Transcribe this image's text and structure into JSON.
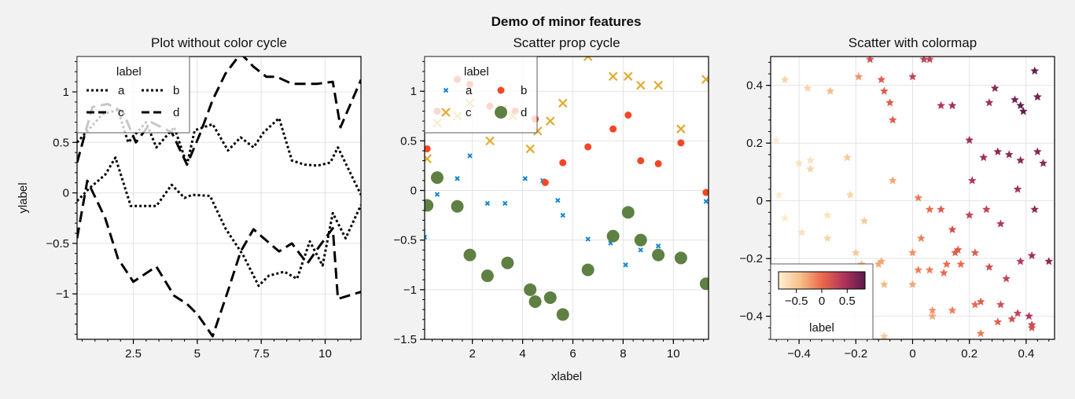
{
  "figure": {
    "suptitle": "Demo of minor features",
    "background": "#f2f2f2",
    "grid_color": "#e3e3e3"
  },
  "chart_data": [
    {
      "type": "line",
      "title": "Plot without color cycle",
      "xlabel": "",
      "ylabel": "ylabel",
      "xlim": [
        0.3,
        11.4
      ],
      "ylim": [
        -1.45,
        1.35
      ],
      "xticks": [
        2.5,
        5,
        7.5,
        10
      ],
      "xtick_labels": [
        "2.5",
        "5",
        "7.5",
        "10"
      ],
      "yticks": [
        -1,
        -0.5,
        0,
        0.5,
        1
      ],
      "ytick_labels": [
        "−1",
        "−0.5",
        "0",
        "0.5",
        "1"
      ],
      "grid": true,
      "color": "#000000",
      "legend": {
        "title": "label",
        "position": "upper-left",
        "entries": [
          "a",
          "b",
          "c",
          "d"
        ]
      },
      "series": [
        {
          "name": "a",
          "style": "dotted",
          "x": [
            0.3,
            0.8,
            1.3,
            1.9,
            2.3,
            3.0,
            3.4,
            4.1,
            4.6,
            4.9,
            5.6,
            6.2,
            6.7,
            7.2,
            7.6,
            8.2,
            8.7,
            9.2,
            9.7,
            10.2,
            10.5,
            11.4
          ],
          "y": [
            0.5,
            0.64,
            0.78,
            0.82,
            0.5,
            0.7,
            0.45,
            0.65,
            0.28,
            0.62,
            0.68,
            0.42,
            0.55,
            0.45,
            0.6,
            0.74,
            0.32,
            0.28,
            0.27,
            0.3,
            0.45,
            -0.02
          ]
        },
        {
          "name": "b",
          "style": "dotted",
          "x": [
            0.3,
            0.8,
            1.4,
            1.8,
            2.4,
            3.4,
            4.0,
            4.5,
            4.8,
            5.5,
            6.1,
            6.8,
            7.4,
            7.8,
            8.4,
            8.9,
            9.4,
            9.9,
            10.3,
            10.8,
            11.4
          ],
          "y": [
            -0.08,
            0.05,
            0.18,
            0.35,
            -0.13,
            -0.13,
            0.08,
            -0.05,
            -0.02,
            -0.03,
            -0.35,
            -0.62,
            -0.92,
            -0.82,
            -0.78,
            -0.85,
            -0.48,
            -0.72,
            -0.2,
            -0.45,
            -0.12
          ]
        },
        {
          "name": "c",
          "style": "dashed",
          "x": [
            0.3,
            0.9,
            1.5,
            2.1,
            2.6,
            3.2,
            4.0,
            4.6,
            5.1,
            5.6,
            6.1,
            6.7,
            7.2,
            7.7,
            8.1,
            8.7,
            9.2,
            9.7,
            10.3,
            10.6,
            11.4
          ],
          "y": [
            0.3,
            0.85,
            0.88,
            0.8,
            0.5,
            0.7,
            0.6,
            0.28,
            0.58,
            0.92,
            1.18,
            1.38,
            1.25,
            1.15,
            1.15,
            1.08,
            1.08,
            1.08,
            1.1,
            0.65,
            1.12
          ]
        },
        {
          "name": "d",
          "style": "dashed",
          "x": [
            0.3,
            0.7,
            1.4,
            1.9,
            2.5,
            3.4,
            4.1,
            4.6,
            5.0,
            5.6,
            6.2,
            6.7,
            7.2,
            7.6,
            8.2,
            8.7,
            9.3,
            9.8,
            10.3,
            10.5,
            11.4
          ],
          "y": [
            -0.45,
            0.12,
            -0.25,
            -0.65,
            -0.88,
            -0.73,
            -1.02,
            -1.1,
            -1.2,
            -1.42,
            -0.97,
            -0.58,
            -0.36,
            -0.45,
            -0.58,
            -0.5,
            -0.7,
            -0.52,
            -0.35,
            -1.05,
            -0.98
          ]
        }
      ]
    },
    {
      "type": "scatter",
      "title": "Scatter prop cycle",
      "xlabel": "xlabel",
      "ylabel": "",
      "xlim": [
        0.1,
        11.4
      ],
      "ylim": [
        -1.5,
        1.35
      ],
      "xticks": [
        2,
        4,
        6,
        8,
        10
      ],
      "xtick_labels": [
        "2",
        "4",
        "6",
        "8",
        "10"
      ],
      "yticks": [
        -1.5,
        -1,
        -0.5,
        0,
        0.5,
        1
      ],
      "ytick_labels": [
        "−1.5",
        "−1",
        "−0.5",
        "0",
        "0.5",
        "1"
      ],
      "grid": true,
      "legend": {
        "title": "label",
        "position": "upper-left",
        "entries": [
          "a",
          "b",
          "c",
          "d"
        ]
      },
      "series": [
        {
          "name": "a",
          "marker": "x-small",
          "color": "#1386d4",
          "x": [
            0.1,
            0.6,
            1.4,
            1.9,
            2.6,
            3.3,
            4.1,
            4.8,
            5.4,
            5.6,
            6.6,
            7.5,
            8.1,
            8.7,
            9.4,
            10.3,
            11.3
          ],
          "y": [
            -0.47,
            -0.04,
            0.12,
            0.35,
            -0.13,
            -0.13,
            0.12,
            0.1,
            -0.1,
            -0.25,
            -0.49,
            -0.53,
            -0.75,
            -0.6,
            -0.56,
            -0.72,
            -0.11
          ]
        },
        {
          "name": "b",
          "marker": "circle-small",
          "color": "#f24726",
          "x": [
            0.2,
            0.6,
            1.4,
            1.9,
            2.7,
            3.2,
            3.7,
            4.5,
            4.9,
            5.6,
            6.6,
            7.6,
            8.2,
            8.7,
            9.4,
            10.3,
            11.3
          ],
          "y": [
            0.42,
            0.8,
            1.12,
            1.07,
            0.85,
            0.78,
            0.8,
            0.72,
            0.08,
            0.28,
            0.44,
            0.62,
            0.76,
            0.3,
            0.27,
            0.48,
            -0.02
          ]
        },
        {
          "name": "c",
          "marker": "x-large",
          "color": "#e0ab2e",
          "x": [
            0.2,
            0.6,
            1.4,
            1.9,
            2.7,
            3.2,
            3.6,
            4.3,
            4.6,
            5.1,
            5.6,
            6.6,
            7.6,
            8.2,
            8.7,
            9.4,
            10.3,
            11.3
          ],
          "y": [
            0.32,
            0.68,
            0.75,
            0.88,
            0.5,
            0.82,
            0.75,
            0.42,
            0.6,
            0.7,
            0.88,
            1.35,
            1.15,
            1.15,
            1.06,
            1.06,
            0.62,
            1.12
          ]
        },
        {
          "name": "d",
          "marker": "circle-large",
          "color": "#5f8043",
          "x": [
            0.2,
            0.6,
            1.4,
            1.9,
            2.6,
            3.4,
            4.3,
            4.5,
            5.1,
            5.6,
            6.6,
            7.6,
            8.2,
            8.7,
            9.4,
            10.3,
            11.3
          ],
          "y": [
            -0.15,
            0.13,
            -0.16,
            -0.65,
            -0.86,
            -0.73,
            -1.0,
            -1.12,
            -1.08,
            -1.25,
            -0.8,
            -0.46,
            -0.22,
            -0.5,
            -0.65,
            -0.68,
            -0.94
          ]
        }
      ]
    },
    {
      "type": "scatter",
      "title": "Scatter with colormap",
      "xlabel": "",
      "ylabel": "",
      "xlim": [
        -0.5,
        0.5
      ],
      "ylim": [
        -0.48,
        0.5
      ],
      "xticks": [
        -0.4,
        -0.2,
        0,
        0.2,
        0.4
      ],
      "xtick_labels": [
        "−0.4",
        "−0.2",
        "0",
        "0.2",
        "0.4"
      ],
      "yticks": [
        -0.4,
        -0.2,
        0,
        0.2,
        0.4
      ],
      "ytick_labels": [
        "−0.4",
        "−0.2",
        "0",
        "0.2",
        "0.4"
      ],
      "grid": true,
      "marker": "star",
      "colormap": {
        "name": "rocket-like",
        "stops": [
          "#fff1d4",
          "#f7c08a",
          "#eb6a4c",
          "#b3345a",
          "#5a1a4a"
        ],
        "vmin": -0.85,
        "vmax": 0.85
      },
      "colorbar": {
        "label": "label",
        "position": "lower-left",
        "ticks": [
          -0.5,
          0,
          0.5
        ],
        "tick_labels": [
          "−0.5",
          "0",
          "0.5"
        ]
      },
      "points": {
        "x": [
          -0.45,
          -0.37,
          -0.29,
          -0.19,
          -0.11,
          -0.08,
          -0.1,
          -0.15,
          -0.07,
          0.0,
          0.04,
          0.06,
          0.1,
          0.14,
          0.2,
          0.27,
          0.36,
          0.38,
          0.39,
          0.43,
          0.44,
          0.44,
          0.46,
          0.44,
          0.38,
          0.34,
          0.29,
          0.25,
          0.21,
          0.3,
          -0.48,
          -0.4,
          -0.36,
          -0.36,
          -0.23,
          -0.47,
          -0.45,
          -0.3,
          -0.22,
          -0.17,
          -0.07,
          0.02,
          0.06,
          0.1,
          0.14,
          0.2,
          0.26,
          0.31,
          0.37,
          0.43,
          0.48,
          -0.39,
          -0.3,
          -0.2,
          -0.11,
          0.0,
          0.06,
          0.12,
          0.16,
          0.22,
          0.27,
          0.33,
          0.38,
          0.42,
          0.03,
          0.11,
          0.15,
          0.24,
          0.31,
          0.37,
          0.41,
          -0.1,
          0.0,
          0.07,
          0.14,
          0.22,
          0.3,
          0.35,
          0.42,
          -0.1,
          0.07,
          0.24,
          0.42,
          -0.18,
          -0.12,
          0.02,
          0.17
        ],
        "y": [
          0.42,
          0.39,
          0.38,
          0.43,
          0.42,
          0.34,
          0.38,
          0.49,
          0.28,
          0.43,
          0.49,
          0.49,
          0.33,
          0.33,
          0.21,
          0.34,
          0.35,
          0.33,
          0.31,
          0.45,
          0.36,
          0.36,
          0.13,
          0.17,
          0.14,
          0.16,
          0.39,
          0.15,
          0.07,
          0.17,
          0.21,
          0.13,
          0.14,
          0.11,
          0.15,
          0.02,
          -0.06,
          -0.05,
          0.02,
          -0.07,
          0.07,
          0.01,
          -0.03,
          -0.03,
          -0.1,
          -0.05,
          -0.03,
          -0.08,
          0.04,
          -0.03,
          -0.21,
          -0.11,
          -0.13,
          -0.18,
          -0.21,
          -0.18,
          -0.24,
          -0.22,
          -0.17,
          -0.18,
          -0.23,
          -0.27,
          -0.21,
          -0.19,
          -0.13,
          -0.25,
          -0.18,
          -0.35,
          -0.36,
          -0.39,
          -0.4,
          -0.29,
          -0.29,
          -0.38,
          -0.38,
          -0.36,
          -0.42,
          -0.41,
          -0.43,
          -0.47,
          -0.4,
          -0.46,
          -0.44,
          -0.22,
          -0.22,
          -0.24,
          -0.22
        ],
        "c": [
          -0.6,
          -0.6,
          -0.4,
          -0.2,
          0.1,
          0.1,
          0.1,
          0.2,
          0.1,
          0.3,
          0.3,
          0.3,
          0.4,
          0.5,
          0.5,
          0.5,
          0.7,
          0.8,
          0.8,
          0.8,
          0.8,
          0.7,
          0.6,
          0.6,
          0.6,
          0.6,
          0.6,
          0.5,
          0.4,
          0.6,
          -0.8,
          -0.7,
          -0.7,
          -0.6,
          -0.5,
          -0.8,
          -0.8,
          -0.7,
          -0.6,
          -0.5,
          -0.3,
          -0.1,
          0.0,
          0.1,
          0.2,
          0.3,
          0.3,
          0.4,
          0.5,
          0.6,
          0.6,
          -0.7,
          -0.6,
          -0.5,
          -0.3,
          -0.2,
          -0.1,
          0.0,
          0.1,
          0.1,
          0.2,
          0.3,
          0.4,
          0.5,
          -0.1,
          0.0,
          0.1,
          0.1,
          0.2,
          0.3,
          0.4,
          -0.4,
          -0.3,
          -0.2,
          -0.1,
          0.0,
          0.1,
          0.2,
          0.3,
          -0.5,
          -0.3,
          -0.1,
          0.2,
          -0.4,
          -0.3,
          -0.1,
          0.0
        ]
      }
    }
  ]
}
